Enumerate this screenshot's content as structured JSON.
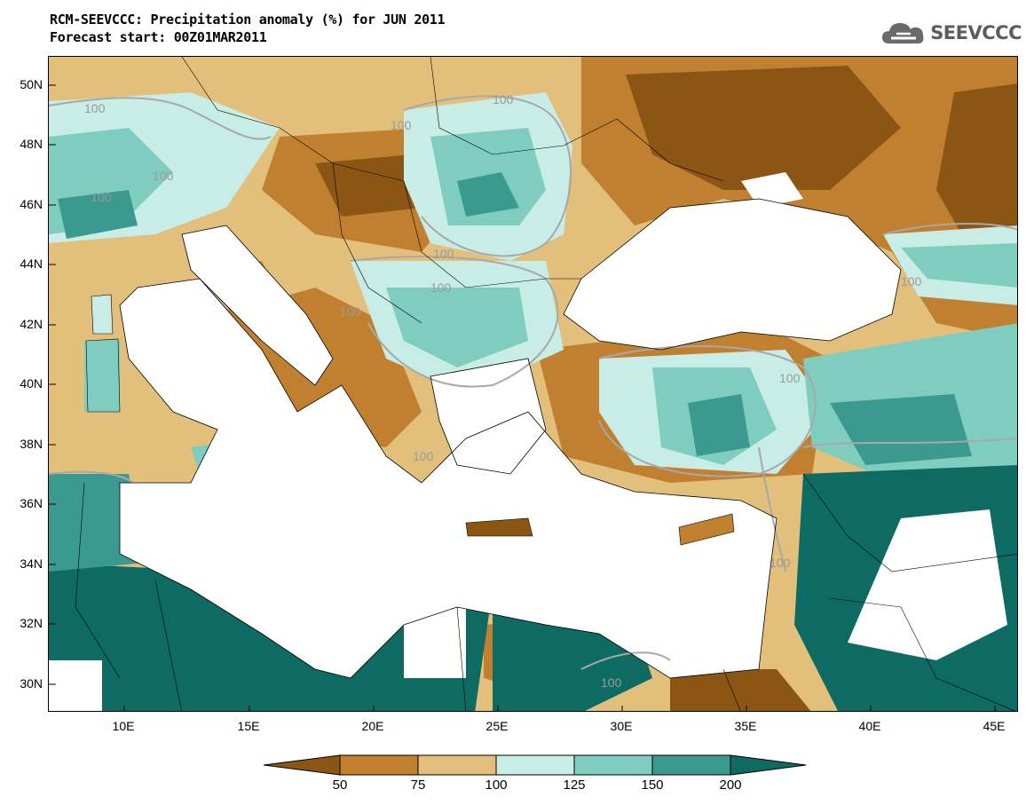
{
  "title": {
    "line1": "RCM-SEEVCCC: Precipitation anomaly (%) for JUN 2011",
    "line2": "Forecast start: 00Z01MAR2011"
  },
  "logo": {
    "text": "SEEVCCC",
    "icon": "cloud-logo-icon"
  },
  "axes": {
    "lat_labels": [
      "50N",
      "48N",
      "46N",
      "44N",
      "42N",
      "40N",
      "38N",
      "36N",
      "34N",
      "32N",
      "30N"
    ],
    "lon_labels": [
      "10E",
      "15E",
      "20E",
      "25E",
      "30E",
      "35E",
      "40E",
      "45E"
    ]
  },
  "contour_label": "100",
  "colorbar": {
    "labels": [
      "50",
      "75",
      "100",
      "125",
      "150",
      "200"
    ],
    "colors": [
      "#8b5513",
      "#c08030",
      "#e2c07c",
      "#c8ece6",
      "#7fcdbf",
      "#3a9a8f",
      "#0d6b63"
    ]
  },
  "colors": {
    "very_dry": "#8b5513",
    "dry": "#c08030",
    "slightly_dry": "#e2c07c",
    "slightly_wet": "#c8ece6",
    "wet": "#7fcdbf",
    "very_wet": "#3a9a8f",
    "extreme_wet": "#0d6b63",
    "contour": "#a8a8a8"
  }
}
